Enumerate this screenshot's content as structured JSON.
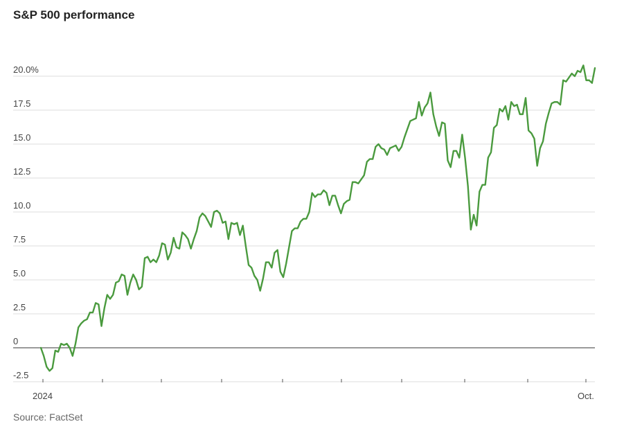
{
  "title": "S&P 500 performance",
  "source": "Source: FactSet",
  "chart_data": {
    "type": "line",
    "title": "S&P 500 performance",
    "xlabel": "",
    "ylabel": "",
    "ylim": [
      -2.5,
      22
    ],
    "yticks": [
      -2.5,
      0,
      2.5,
      5.0,
      7.5,
      10.0,
      12.5,
      15.0,
      17.5,
      20.0
    ],
    "ytick_labels": [
      "-2.5",
      "0",
      "2.5",
      "5.0",
      "7.5",
      "10.0",
      "12.5",
      "15.0",
      "17.5",
      "20.0%"
    ],
    "xtick_labels": [
      "2024",
      "Oct."
    ],
    "grid": true,
    "line_color": "#4a9a3e",
    "series": [
      {
        "values": [
          0,
          -0.6,
          -1.4,
          -1.7,
          -1.5,
          -0.2,
          -0.3,
          0.3,
          0.2,
          0.3,
          0.0,
          -0.6,
          0.3,
          1.5,
          1.8,
          2.0,
          2.1,
          2.6,
          2.6,
          3.3,
          3.2,
          1.6,
          2.9,
          3.9,
          3.6,
          3.9,
          4.8,
          4.9,
          5.4,
          5.3,
          3.9,
          4.8,
          5.4,
          5.0,
          4.3,
          4.5,
          6.6,
          6.7,
          6.3,
          6.5,
          6.3,
          6.8,
          7.7,
          7.6,
          6.5,
          7.0,
          8.1,
          7.4,
          7.3,
          8.5,
          8.3,
          8.0,
          7.3,
          8.0,
          8.6,
          9.6,
          9.9,
          9.7,
          9.3,
          8.9,
          10.0,
          10.1,
          9.9,
          9.2,
          9.3,
          8.0,
          9.2,
          9.1,
          9.2,
          8.3,
          9.0,
          7.5,
          6.1,
          5.9,
          5.3,
          5.0,
          4.2,
          5.1,
          6.3,
          6.3,
          5.9,
          7.0,
          7.2,
          5.6,
          5.2,
          6.2,
          7.4,
          8.6,
          8.8,
          8.8,
          9.3,
          9.5,
          9.5,
          10.0,
          11.4,
          11.1,
          11.3,
          11.3,
          11.6,
          11.4,
          10.5,
          11.2,
          11.2,
          10.5,
          9.9,
          10.6,
          10.8,
          10.9,
          12.2,
          12.2,
          12.1,
          12.4,
          12.7,
          13.7,
          13.9,
          13.9,
          14.8,
          15.0,
          14.7,
          14.6,
          14.2,
          14.7,
          14.8,
          14.9,
          14.5,
          14.8,
          15.5,
          16.1,
          16.7,
          16.8,
          16.9,
          18.1,
          17.1,
          17.7,
          18.0,
          18.8,
          17.2,
          16.3,
          15.6,
          16.6,
          16.5,
          13.8,
          13.3,
          14.5,
          14.5,
          14.0,
          15.7,
          14.0,
          11.9,
          8.7,
          9.8,
          9.0,
          11.5,
          12.0,
          12.0,
          14.0,
          14.4,
          16.2,
          16.4,
          17.6,
          17.4,
          17.8,
          16.8,
          18.1,
          17.8,
          17.9,
          17.2,
          17.2,
          18.4,
          16.0,
          15.8,
          15.4,
          13.4,
          14.7,
          15.2,
          16.5,
          17.3,
          18.0,
          18.1,
          18.1,
          17.9,
          19.7,
          19.6,
          19.9,
          20.2,
          20.0,
          20.4,
          20.3,
          20.8,
          19.7,
          19.7,
          19.5,
          20.6
        ]
      }
    ]
  }
}
